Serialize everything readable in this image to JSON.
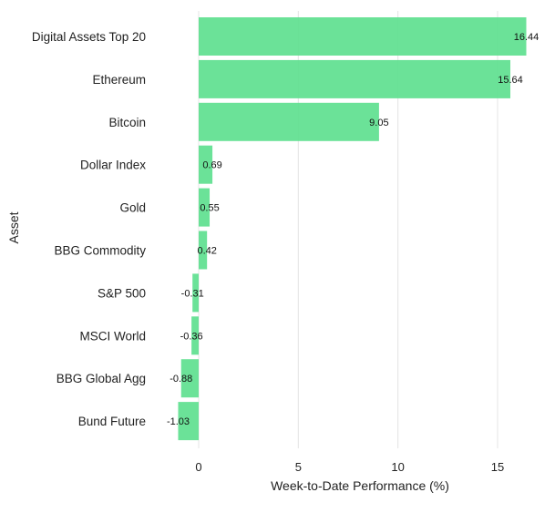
{
  "chart_data": {
    "type": "bar",
    "orientation": "horizontal",
    "title": "",
    "xlabel": "Week-to-Date Performance (%)",
    "ylabel": "Asset",
    "xlim": [
      -1.6,
      17.0
    ],
    "x_ticks": [
      0,
      5,
      10,
      15
    ],
    "grid": true,
    "bar_color": "#5ee08f",
    "categories": [
      "Digital Assets Top 20",
      "Ethereum",
      "Bitcoin",
      "Dollar Index",
      "Gold",
      "BBG Commodity",
      "S&P 500",
      "MSCI World",
      "BBG Global Agg",
      "Bund Future"
    ],
    "values": [
      16.44,
      15.64,
      9.05,
      0.69,
      0.55,
      0.42,
      -0.31,
      -0.36,
      -0.88,
      -1.03
    ],
    "data_labels": [
      "16.44",
      "15.64",
      "9.05",
      "0.69",
      "0.55",
      "0.42",
      "-0.31",
      "-0.36",
      "-0.88",
      "-1.03"
    ]
  }
}
